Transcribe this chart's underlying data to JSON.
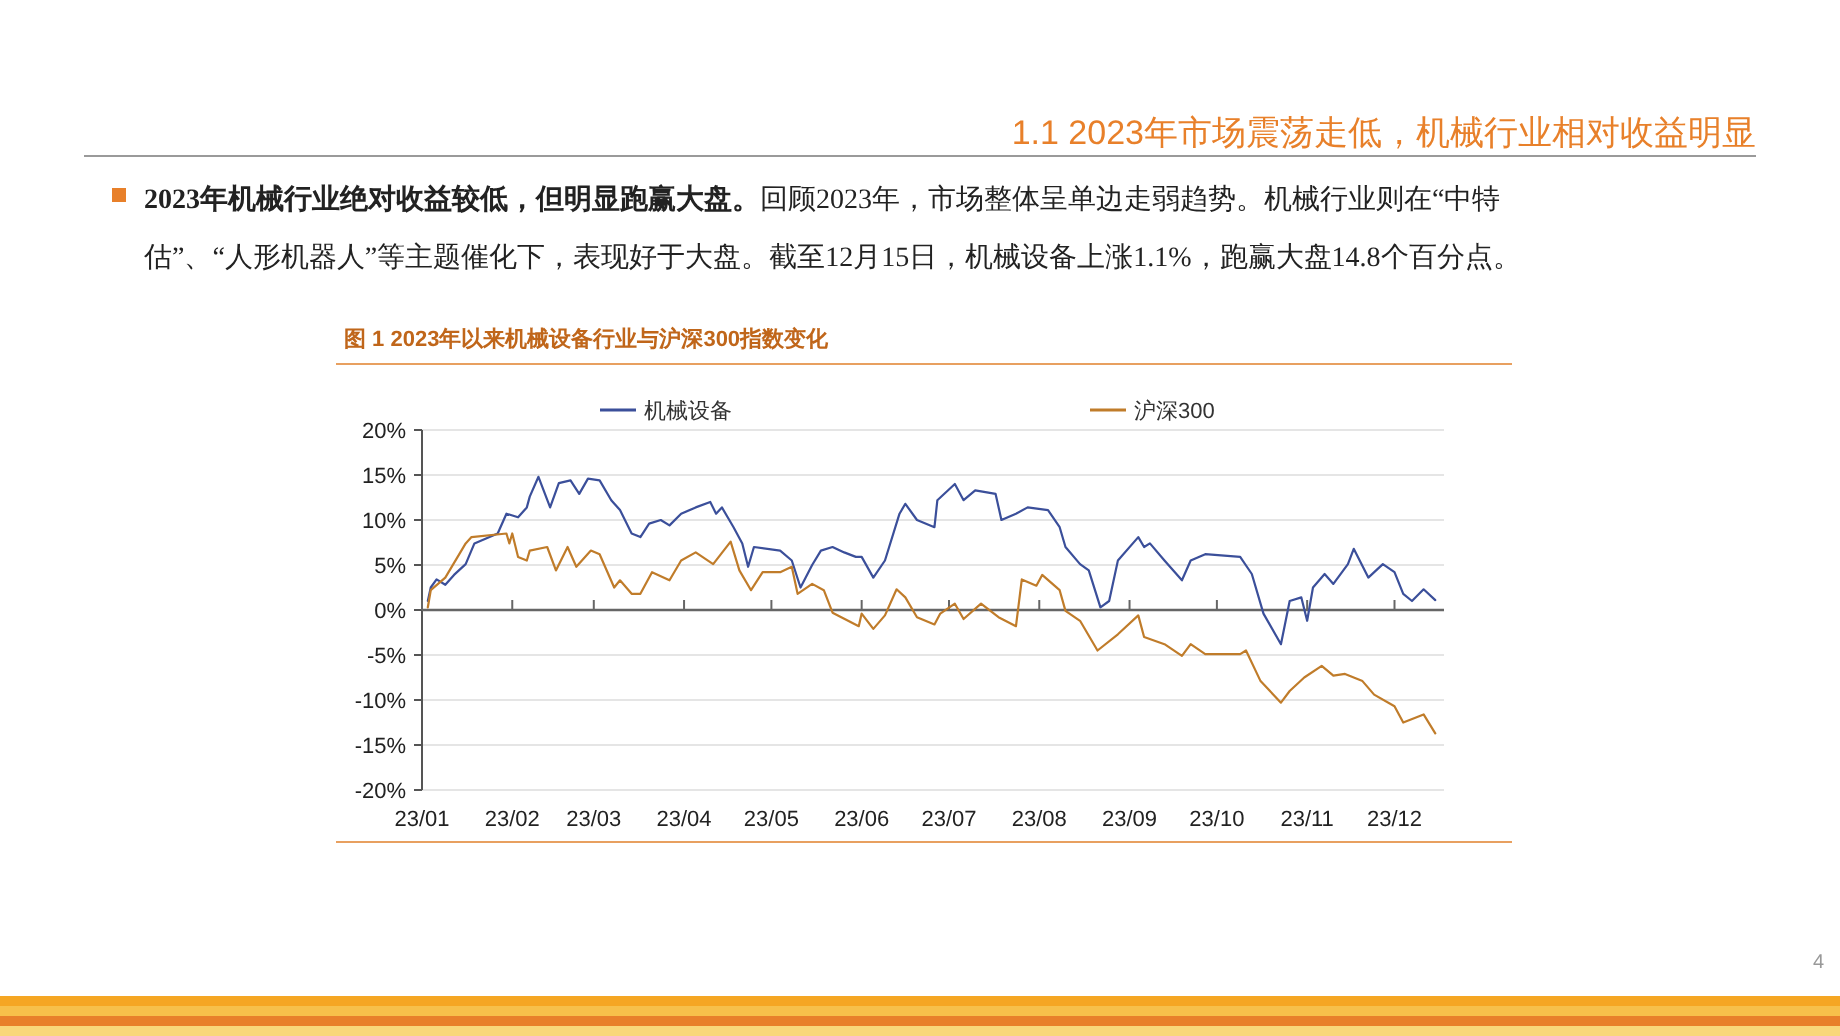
{
  "chart_data": {
    "type": "line",
    "title": "图 1 2023年以来机械设备行业与沪深300指数变化",
    "annotations": [
      "1.1 2023年市场震荡走低，机械行业相对收益明显",
      "2023年机械行业绝对收益较低，但明显跑赢大盘。",
      "回顾2023年，市场整体呈单边走弱趋势。机械行业则在“中特估”、“人形机器人”等主题催化下，表现好于大盘。截至12月15日，机械设备上涨1.1%，跑赢大盘14.8个百分点。",
      "4"
    ],
    "xlim": [
      "2023-01-01",
      "2023-12-18"
    ],
    "xticks": [
      {
        "value": "2023-01-01",
        "label": "23/01"
      },
      {
        "value": "2023-02-01",
        "label": "23/02"
      },
      {
        "value": "2023-03-01",
        "label": "23/03"
      },
      {
        "value": "2023-04-01",
        "label": "23/04"
      },
      {
        "value": "2023-05-01",
        "label": "23/05"
      },
      {
        "value": "2023-06-01",
        "label": "23/06"
      },
      {
        "value": "2023-07-01",
        "label": "23/07"
      },
      {
        "value": "2023-08-01",
        "label": "23/08"
      },
      {
        "value": "2023-09-01",
        "label": "23/09"
      },
      {
        "value": "2023-10-01",
        "label": "23/10"
      },
      {
        "value": "2023-11-01",
        "label": "23/11"
      },
      {
        "value": "2023-12-01",
        "label": "23/12"
      }
    ],
    "ylim": [
      -20,
      20
    ],
    "yticks": [
      {
        "value": 20,
        "label": "20%"
      },
      {
        "value": 15,
        "label": "15%"
      },
      {
        "value": 10,
        "label": "10%"
      },
      {
        "value": 5,
        "label": "5%"
      },
      {
        "value": 0,
        "label": "0%"
      },
      {
        "value": -5,
        "label": "-5%"
      },
      {
        "value": -10,
        "label": "-10%"
      },
      {
        "value": -15,
        "label": "-15%"
      },
      {
        "value": -20,
        "label": "-20%"
      }
    ],
    "grid": "y",
    "legend": "top",
    "marker": "none",
    "line_style": "solid",
    "series": [
      {
        "name": "机械设备",
        "color": "#3b4f9a",
        "x": [
          "2023-01-03",
          "2023-01-04",
          "2023-01-06",
          "2023-01-09",
          "2023-01-12",
          "2023-01-16",
          "2023-01-19",
          "2023-01-27",
          "2023-01-30",
          "2023-02-03",
          "2023-02-06",
          "2023-02-07",
          "2023-02-10",
          "2023-02-14",
          "2023-02-17",
          "2023-02-21",
          "2023-02-24",
          "2023-02-27",
          "2023-03-03",
          "2023-03-07",
          "2023-03-10",
          "2023-03-14",
          "2023-03-17",
          "2023-03-20",
          "2023-03-24",
          "2023-03-27",
          "2023-03-31",
          "2023-04-05",
          "2023-04-10",
          "2023-04-12",
          "2023-04-14",
          "2023-04-18",
          "2023-04-21",
          "2023-04-23",
          "2023-04-25",
          "2023-05-04",
          "2023-05-08",
          "2023-05-11",
          "2023-05-15",
          "2023-05-18",
          "2023-05-22",
          "2023-05-26",
          "2023-05-30",
          "2023-06-01",
          "2023-06-05",
          "2023-06-09",
          "2023-06-14",
          "2023-06-16",
          "2023-06-20",
          "2023-06-26",
          "2023-06-27",
          "2023-07-03",
          "2023-07-06",
          "2023-07-10",
          "2023-07-17",
          "2023-07-19",
          "2023-07-24",
          "2023-07-28",
          "2023-08-04",
          "2023-08-08",
          "2023-08-10",
          "2023-08-15",
          "2023-08-18",
          "2023-08-22",
          "2023-08-25",
          "2023-08-28",
          "2023-09-04",
          "2023-09-06",
          "2023-09-08",
          "2023-09-13",
          "2023-09-19",
          "2023-09-22",
          "2023-09-27",
          "2023-10-09",
          "2023-10-13",
          "2023-10-17",
          "2023-10-23",
          "2023-10-26",
          "2023-10-30",
          "2023-11-01",
          "2023-11-03",
          "2023-11-07",
          "2023-11-10",
          "2023-11-15",
          "2023-11-17",
          "2023-11-22",
          "2023-11-27",
          "2023-12-01",
          "2023-12-04",
          "2023-12-07",
          "2023-12-11",
          "2023-12-15"
        ],
        "values": [
          1.0,
          2.5,
          3.4,
          2.8,
          3.9,
          5.1,
          7.4,
          8.5,
          10.7,
          10.3,
          11.4,
          12.6,
          14.8,
          11.4,
          14.1,
          14.4,
          12.9,
          14.6,
          14.4,
          12.2,
          11.1,
          8.5,
          8.1,
          9.6,
          10.0,
          9.4,
          10.7,
          11.4,
          12.0,
          10.7,
          11.4,
          9.2,
          7.4,
          4.8,
          7.0,
          6.6,
          5.5,
          2.5,
          5.0,
          6.6,
          7.0,
          6.4,
          5.9,
          5.9,
          3.6,
          5.5,
          10.7,
          11.8,
          10.0,
          9.2,
          12.2,
          14.0,
          12.2,
          13.3,
          12.9,
          10.0,
          10.7,
          11.4,
          11.1,
          9.2,
          7.0,
          5.1,
          4.4,
          0.3,
          1.0,
          5.5,
          8.1,
          7.0,
          7.4,
          5.5,
          3.3,
          5.5,
          6.2,
          5.9,
          4.0,
          -0.4,
          -3.8,
          1.0,
          1.4,
          -1.2,
          2.5,
          4.0,
          2.9,
          5.1,
          6.8,
          3.6,
          5.1,
          4.2,
          1.8,
          1.0,
          2.3,
          1.1
        ]
      },
      {
        "name": "沪深300",
        "color": "#c07c2a",
        "x": [
          "2023-01-03",
          "2023-01-04",
          "2023-01-09",
          "2023-01-16",
          "2023-01-18",
          "2023-01-30",
          "2023-01-31",
          "2023-02-01",
          "2023-02-03",
          "2023-02-06",
          "2023-02-07",
          "2023-02-13",
          "2023-02-16",
          "2023-02-20",
          "2023-02-23",
          "2023-02-28",
          "2023-03-03",
          "2023-03-08",
          "2023-03-10",
          "2023-03-14",
          "2023-03-17",
          "2023-03-21",
          "2023-03-27",
          "2023-03-31",
          "2023-04-05",
          "2023-04-11",
          "2023-04-17",
          "2023-04-20",
          "2023-04-24",
          "2023-04-28",
          "2023-05-04",
          "2023-05-08",
          "2023-05-10",
          "2023-05-15",
          "2023-05-19",
          "2023-05-22",
          "2023-05-31",
          "2023-06-01",
          "2023-06-05",
          "2023-06-09",
          "2023-06-13",
          "2023-06-16",
          "2023-06-20",
          "2023-06-26",
          "2023-06-28",
          "2023-07-03",
          "2023-07-06",
          "2023-07-12",
          "2023-07-18",
          "2023-07-24",
          "2023-07-26",
          "2023-07-31",
          "2023-08-02",
          "2023-08-08",
          "2023-08-10",
          "2023-08-15",
          "2023-08-21",
          "2023-08-28",
          "2023-09-04",
          "2023-09-06",
          "2023-09-13",
          "2023-09-19",
          "2023-09-22",
          "2023-09-27",
          "2023-10-09",
          "2023-10-11",
          "2023-10-16",
          "2023-10-23",
          "2023-10-26",
          "2023-10-31",
          "2023-11-06",
          "2023-11-10",
          "2023-11-14",
          "2023-11-20",
          "2023-11-24",
          "2023-12-01",
          "2023-12-04",
          "2023-12-11",
          "2023-12-15"
        ],
        "values": [
          0.3,
          2.2,
          3.6,
          7.4,
          8.1,
          8.5,
          7.4,
          8.5,
          5.9,
          5.5,
          6.6,
          7.0,
          4.4,
          7.0,
          4.8,
          6.6,
          6.2,
          2.5,
          3.3,
          1.8,
          1.8,
          4.2,
          3.3,
          5.5,
          6.4,
          5.1,
          7.6,
          4.4,
          2.2,
          4.2,
          4.2,
          4.8,
          1.8,
          2.9,
          2.2,
          -0.3,
          -1.8,
          -0.4,
          -2.1,
          -0.6,
          2.3,
          1.4,
          -0.8,
          -1.6,
          -0.4,
          0.7,
          -1.0,
          0.7,
          -0.8,
          -1.8,
          3.4,
          2.7,
          3.9,
          2.2,
          -0.1,
          -1.2,
          -4.5,
          -2.7,
          -0.6,
          -3.0,
          -3.8,
          -5.1,
          -3.8,
          -4.9,
          -4.9,
          -4.5,
          -7.9,
          -10.3,
          -9.0,
          -7.5,
          -6.2,
          -7.3,
          -7.1,
          -7.9,
          -9.4,
          -10.7,
          -12.5,
          -11.6,
          -13.7
        ]
      }
    ]
  }
}
